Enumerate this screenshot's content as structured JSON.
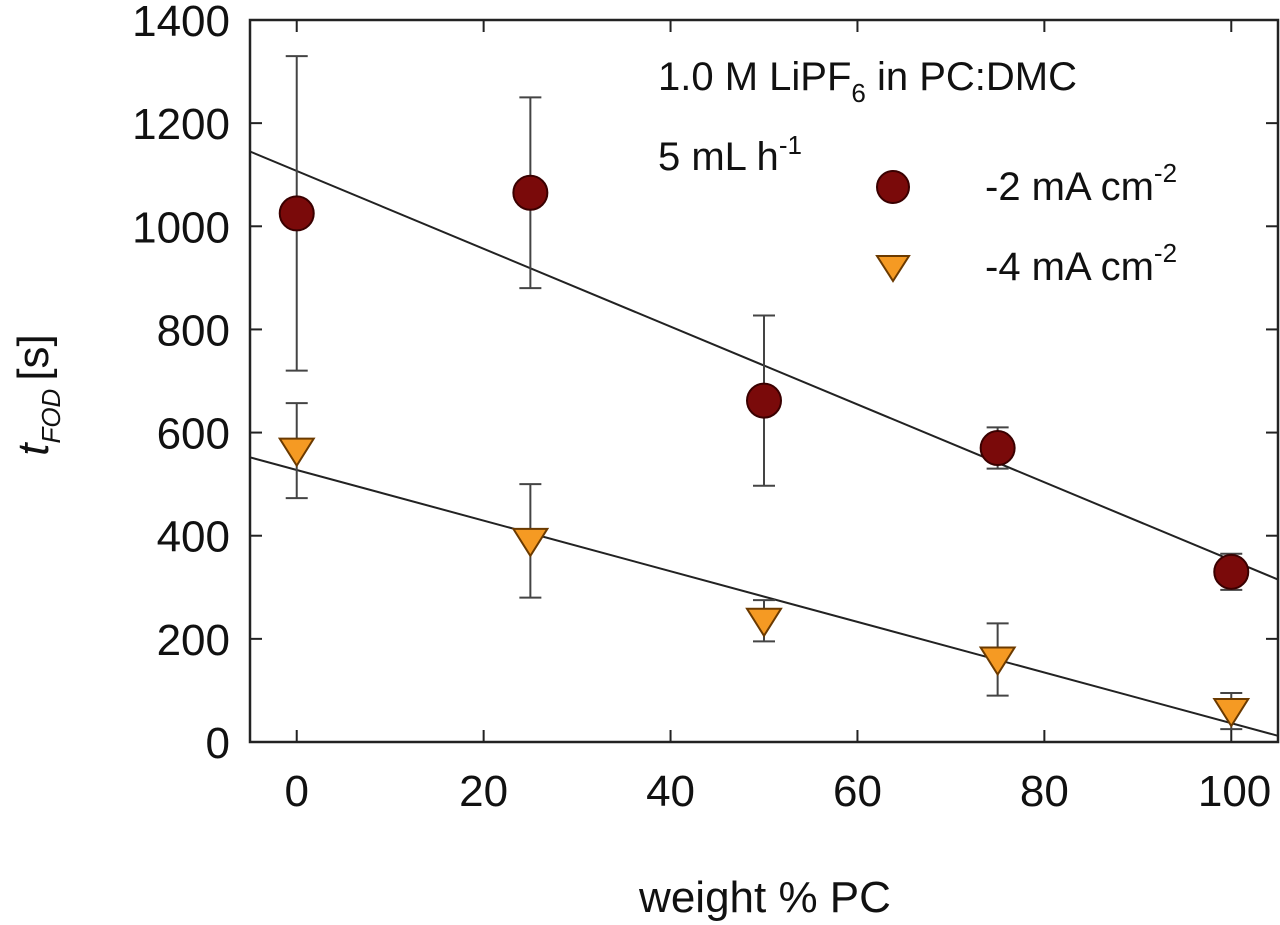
{
  "chart_data": {
    "type": "scatter",
    "title": "",
    "xlabel": "weight % PC",
    "ylabel": {
      "var": "t",
      "sub": "FOD",
      "unit": "[s]"
    },
    "xlim": [
      -5,
      105
    ],
    "ylim": [
      0,
      1400
    ],
    "x_ticks": [
      0,
      20,
      40,
      60,
      80,
      100
    ],
    "y_ticks": [
      0,
      200,
      400,
      600,
      800,
      1000,
      1200,
      1400
    ],
    "grid": false,
    "annotation": {
      "line1_prefix": "1.0 M LiPF",
      "line1_sub": "6",
      "line1_suffix": " in PC:DMC",
      "line2": "5 mL h",
      "line2_sup": "-1"
    },
    "legend_position": "top-right",
    "series": [
      {
        "name": "-2 mA cm-2",
        "label_text": "-2 mA cm",
        "label_sup": "-2",
        "marker": "circle",
        "color": "#7a0a0a",
        "x": [
          0,
          25,
          50,
          75,
          100
        ],
        "y": [
          1025,
          1065,
          662,
          570,
          330
        ],
        "err": [
          305,
          185,
          165,
          40,
          35
        ],
        "fit": [
          [
            -5,
            1145
          ],
          [
            105,
            315
          ]
        ]
      },
      {
        "name": "-4 mA cm-2",
        "label_text": "-4 mA cm",
        "label_sup": "-2",
        "marker": "triangle-down",
        "color": "#f59a23",
        "x": [
          0,
          25,
          50,
          75,
          100
        ],
        "y": [
          565,
          390,
          235,
          160,
          60
        ],
        "err": [
          92,
          110,
          40,
          70,
          35
        ],
        "fit": [
          [
            -5,
            552
          ],
          [
            105,
            12
          ]
        ]
      }
    ]
  }
}
